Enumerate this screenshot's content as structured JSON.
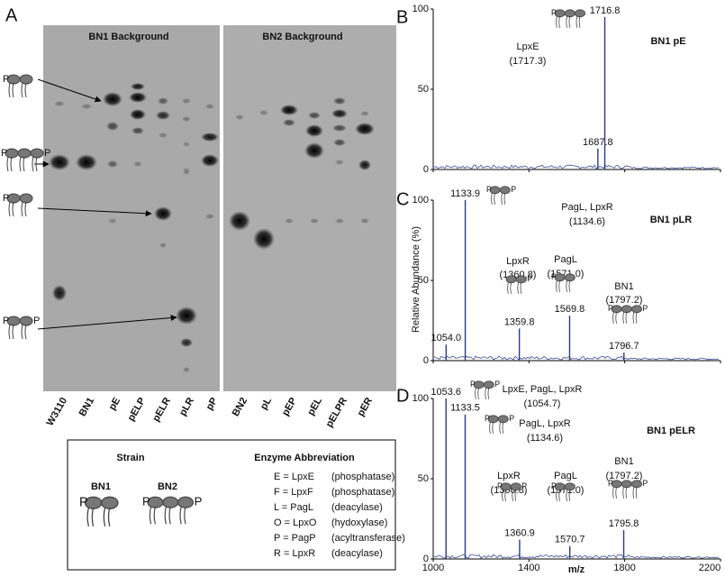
{
  "panel_a": {
    "label": "A",
    "backgrounds": [
      "BN1 Background",
      "BN2 Background"
    ],
    "lanes": [
      "W3110",
      "BN1",
      "pE",
      "pELP",
      "pELR",
      "pLR",
      "pP",
      "BN2",
      "pL",
      "pEP",
      "pEL",
      "pELPR",
      "pER"
    ],
    "phosphate": "P",
    "legend": {
      "strain_title": "Strain",
      "enzyme_title": "Enzyme Abbreviation",
      "strains": [
        "BN1",
        "BN2"
      ],
      "enzymes": [
        {
          "code": "E = LpxE",
          "role": "(phosphatase)"
        },
        {
          "code": "F = LpxF",
          "role": "(phosphatase)"
        },
        {
          "code": "L = PagL",
          "role": "(deacylase)"
        },
        {
          "code": "O = LpxO",
          "role": "(hydoxylase)"
        },
        {
          "code": "P = PagP",
          "role": "(acyltransferase)"
        },
        {
          "code": "R = LpxR",
          "role": "(deacylase)"
        }
      ]
    }
  },
  "spectra": {
    "y_axis_label": "Relative Abundance (%)",
    "x_axis_label": "m/z",
    "xlim": [
      1000,
      2200
    ],
    "xticks": [
      1000,
      1400,
      1800,
      2200
    ],
    "ylim": [
      0,
      100
    ],
    "yticks": [
      0,
      50,
      100
    ],
    "panels": [
      {
        "label": "B",
        "title": "BN1 pE",
        "peaks": [
          {
            "mz": 1716.8,
            "intensity": 95
          },
          {
            "mz": 1687.8,
            "intensity": 13
          }
        ],
        "annotations": [
          "LpxE",
          "(1717.3)"
        ]
      },
      {
        "label": "C",
        "title": "BN1 pLR",
        "peaks": [
          {
            "mz": 1133.9,
            "intensity": 100
          },
          {
            "mz": {
              "value": 1054,
              "label": "1054.0"
            },
            "intensity": 10
          },
          {
            "mz": 1359.8,
            "intensity": 20
          },
          {
            "mz": 1569.8,
            "intensity": 28
          },
          {
            "mz": 1796.7,
            "intensity": 5
          }
        ],
        "annotations": [
          "PagL, LpxR",
          "(1134.6)",
          "LpxR",
          "(1360.8)",
          "PagL",
          "(1571.0)",
          "BN1",
          "(1797.2)"
        ]
      },
      {
        "label": "D",
        "title": "BN1 pELR",
        "peaks": [
          {
            "mz": 1053.6,
            "intensity": 100
          },
          {
            "mz": 1133.5,
            "intensity": 90
          },
          {
            "mz": 1360.9,
            "intensity": 12
          },
          {
            "mz": 1570.7,
            "intensity": 8
          },
          {
            "mz": 1795.8,
            "intensity": 18
          }
        ],
        "annotations": [
          "LpxE, PagL, LpxR",
          "(1054.7)",
          "PagL, LpxR",
          "(1134.6)",
          "LpxR",
          "(1360.8)",
          "PagL",
          "(1571.0)",
          "BN1",
          "(1797.2)"
        ]
      }
    ]
  }
}
